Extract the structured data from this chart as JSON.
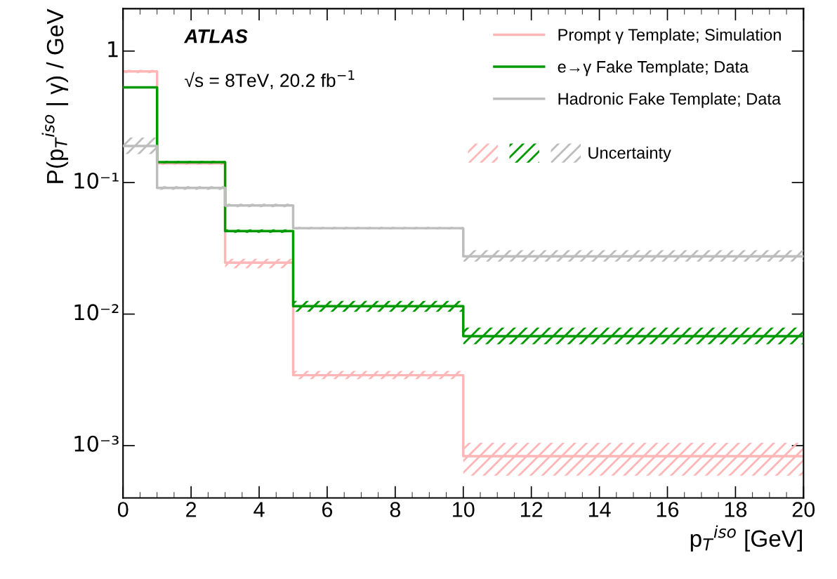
{
  "chart_data": {
    "type": "step",
    "xlabel": "p$_{T}$$^{iso}$ [GeV]",
    "ylabel": "P(p$_{T}$$^{iso}$ | γ) / GeV",
    "x": [
      0,
      1,
      3,
      5,
      10,
      20
    ],
    "series": [
      {
        "name": "Prompt γ Template; Simulation",
        "color": "#ffb6b6",
        "values": [
          0.7,
          0.14,
          0.0246,
          0.00343,
          0.00083,
          0.00083
        ],
        "lower": [
          0.68,
          0.136,
          0.0223,
          0.0032,
          0.00059,
          0.00059
        ],
        "upper": [
          0.72,
          0.144,
          0.0263,
          0.0037,
          0.00105,
          0.00105
        ]
      },
      {
        "name": "e→γ Fake Template; Data",
        "color": "#009900",
        "values": [
          0.53,
          0.143,
          0.0428,
          0.0115,
          0.0068,
          0.0068
        ],
        "lower": [
          0.52,
          0.14,
          0.0415,
          0.0104,
          0.0059,
          0.0059
        ],
        "upper": [
          0.54,
          0.146,
          0.0441,
          0.0126,
          0.0079,
          0.0079
        ]
      },
      {
        "name": "Hadronic Fake Template; Data",
        "color": "#bdbdbd",
        "values": [
          0.19,
          0.091,
          0.067,
          0.045,
          0.0275,
          0.0275
        ],
        "lower": [
          0.165,
          0.088,
          0.065,
          0.044,
          0.0251,
          0.0251
        ],
        "upper": [
          0.22,
          0.094,
          0.069,
          0.046,
          0.0306,
          0.0306
        ]
      }
    ],
    "annotations": [
      "ATLAS",
      "√s = 8TeV, 20.2 fb$^{−1}$",
      "Uncertainty"
    ],
    "log": "y",
    "xlim": [
      0,
      20
    ],
    "ylim": [
      0.0004,
      2.1
    ],
    "xticks": [
      0,
      2,
      4,
      6,
      8,
      10,
      12,
      14,
      16,
      18,
      20
    ],
    "yticks": [
      {
        "value": 0.001,
        "label": "10⁻³"
      },
      {
        "value": 0.01,
        "label": "10⁻²"
      },
      {
        "value": 0.1,
        "label": "10⁻¹"
      },
      1
    ],
    "legend": "top right",
    "grid": false
  }
}
